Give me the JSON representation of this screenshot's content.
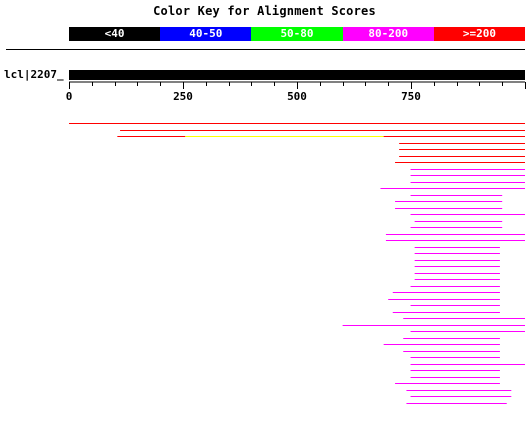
{
  "title": "Color Key for Alignment Scores",
  "legend": [
    {
      "label": "<40",
      "color": "#000000"
    },
    {
      "label": "40-50",
      "color": "#0000ff"
    },
    {
      "label": "50-80",
      "color": "#00ff00"
    },
    {
      "label": "80-200",
      "color": "#ff00ff"
    },
    {
      "label": ">=200",
      "color": "#ff0000"
    }
  ],
  "query": {
    "label": "lcl|2207_",
    "length": 1000
  },
  "axis": {
    "min": 0,
    "max": 1000,
    "ticks": [
      {
        "value": 0,
        "label": "0"
      },
      {
        "value": 250,
        "label": "250"
      },
      {
        "value": 500,
        "label": "500"
      },
      {
        "value": 750,
        "label": "750"
      }
    ]
  },
  "hits": [
    {
      "segments": [
        {
          "start": 0,
          "end": 1000,
          "color": "#ff0000"
        }
      ]
    },
    {
      "segments": [
        {
          "start": 112,
          "end": 1000,
          "color": "#ff0000"
        }
      ]
    },
    {
      "segments": [
        {
          "start": 106,
          "end": 255,
          "color": "#ff0000"
        },
        {
          "start": 255,
          "end": 690,
          "color": "#ffff00"
        },
        {
          "start": 690,
          "end": 1000,
          "color": "#ff0000"
        }
      ]
    },
    {
      "segments": [
        {
          "start": 724,
          "end": 1000,
          "color": "#ff0000"
        }
      ]
    },
    {
      "segments": [
        {
          "start": 724,
          "end": 1000,
          "color": "#ff0000"
        }
      ]
    },
    {
      "segments": [
        {
          "start": 724,
          "end": 1000,
          "color": "#ff0000"
        }
      ]
    },
    {
      "segments": [
        {
          "start": 715,
          "end": 1000,
          "color": "#ff0000"
        }
      ]
    },
    {
      "segments": [
        {
          "start": 749,
          "end": 1000,
          "color": "#ff00ff"
        }
      ]
    },
    {
      "segments": [
        {
          "start": 749,
          "end": 1000,
          "color": "#ff00ff"
        }
      ]
    },
    {
      "segments": [
        {
          "start": 749,
          "end": 1000,
          "color": "#ff00ff"
        }
      ]
    },
    {
      "segments": [
        {
          "start": 683,
          "end": 1000,
          "color": "#ff00ff"
        }
      ]
    },
    {
      "segments": [
        {
          "start": 749,
          "end": 950,
          "color": "#ff00ff"
        }
      ]
    },
    {
      "segments": [
        {
          "start": 715,
          "end": 950,
          "color": "#ff00ff"
        }
      ]
    },
    {
      "segments": [
        {
          "start": 715,
          "end": 950,
          "color": "#ff00ff"
        }
      ]
    },
    {
      "segments": [
        {
          "start": 749,
          "end": 1000,
          "color": "#ff00ff"
        }
      ]
    },
    {
      "segments": [
        {
          "start": 758,
          "end": 950,
          "color": "#ff00ff"
        }
      ]
    },
    {
      "segments": [
        {
          "start": 749,
          "end": 950,
          "color": "#ff00ff"
        }
      ]
    },
    {
      "segments": [
        {
          "start": 695,
          "end": 1000,
          "color": "#ff00ff"
        }
      ]
    },
    {
      "segments": [
        {
          "start": 695,
          "end": 1000,
          "color": "#ff00ff"
        }
      ]
    },
    {
      "segments": [
        {
          "start": 758,
          "end": 945,
          "color": "#ff00ff"
        }
      ]
    },
    {
      "segments": [
        {
          "start": 758,
          "end": 945,
          "color": "#ff00ff"
        }
      ]
    },
    {
      "segments": [
        {
          "start": 758,
          "end": 945,
          "color": "#ff00ff"
        }
      ]
    },
    {
      "segments": [
        {
          "start": 758,
          "end": 945,
          "color": "#ff00ff"
        }
      ]
    },
    {
      "segments": [
        {
          "start": 758,
          "end": 945,
          "color": "#ff00ff"
        }
      ]
    },
    {
      "segments": [
        {
          "start": 758,
          "end": 945,
          "color": "#ff00ff"
        }
      ]
    },
    {
      "segments": [
        {
          "start": 749,
          "end": 945,
          "color": "#ff00ff"
        }
      ]
    },
    {
      "segments": [
        {
          "start": 710,
          "end": 945,
          "color": "#ff00ff"
        }
      ]
    },
    {
      "segments": [
        {
          "start": 700,
          "end": 945,
          "color": "#ff00ff"
        }
      ]
    },
    {
      "segments": [
        {
          "start": 749,
          "end": 945,
          "color": "#ff00ff"
        }
      ]
    },
    {
      "segments": [
        {
          "start": 710,
          "end": 945,
          "color": "#ff00ff"
        }
      ]
    },
    {
      "segments": [
        {
          "start": 733,
          "end": 1000,
          "color": "#ff00ff"
        }
      ]
    },
    {
      "segments": [
        {
          "start": 600,
          "end": 1000,
          "color": "#ff00ff"
        }
      ]
    },
    {
      "segments": [
        {
          "start": 749,
          "end": 1000,
          "color": "#ff00ff"
        }
      ]
    },
    {
      "segments": [
        {
          "start": 733,
          "end": 945,
          "color": "#ff00ff"
        }
      ]
    },
    {
      "segments": [
        {
          "start": 690,
          "end": 945,
          "color": "#ff00ff"
        }
      ]
    },
    {
      "segments": [
        {
          "start": 733,
          "end": 945,
          "color": "#ff00ff"
        }
      ]
    },
    {
      "segments": [
        {
          "start": 749,
          "end": 945,
          "color": "#ff00ff"
        }
      ]
    },
    {
      "segments": [
        {
          "start": 749,
          "end": 1000,
          "color": "#ff00ff"
        }
      ]
    },
    {
      "segments": [
        {
          "start": 749,
          "end": 945,
          "color": "#ff00ff"
        }
      ]
    },
    {
      "segments": [
        {
          "start": 749,
          "end": 945,
          "color": "#ff00ff"
        }
      ]
    },
    {
      "segments": [
        {
          "start": 715,
          "end": 945,
          "color": "#ff00ff"
        }
      ]
    },
    {
      "segments": [
        {
          "start": 740,
          "end": 970,
          "color": "#ff00ff"
        }
      ]
    },
    {
      "segments": [
        {
          "start": 749,
          "end": 970,
          "color": "#ff00ff"
        }
      ]
    },
    {
      "segments": [
        {
          "start": 740,
          "end": 960,
          "color": "#ff00ff"
        }
      ]
    }
  ]
}
